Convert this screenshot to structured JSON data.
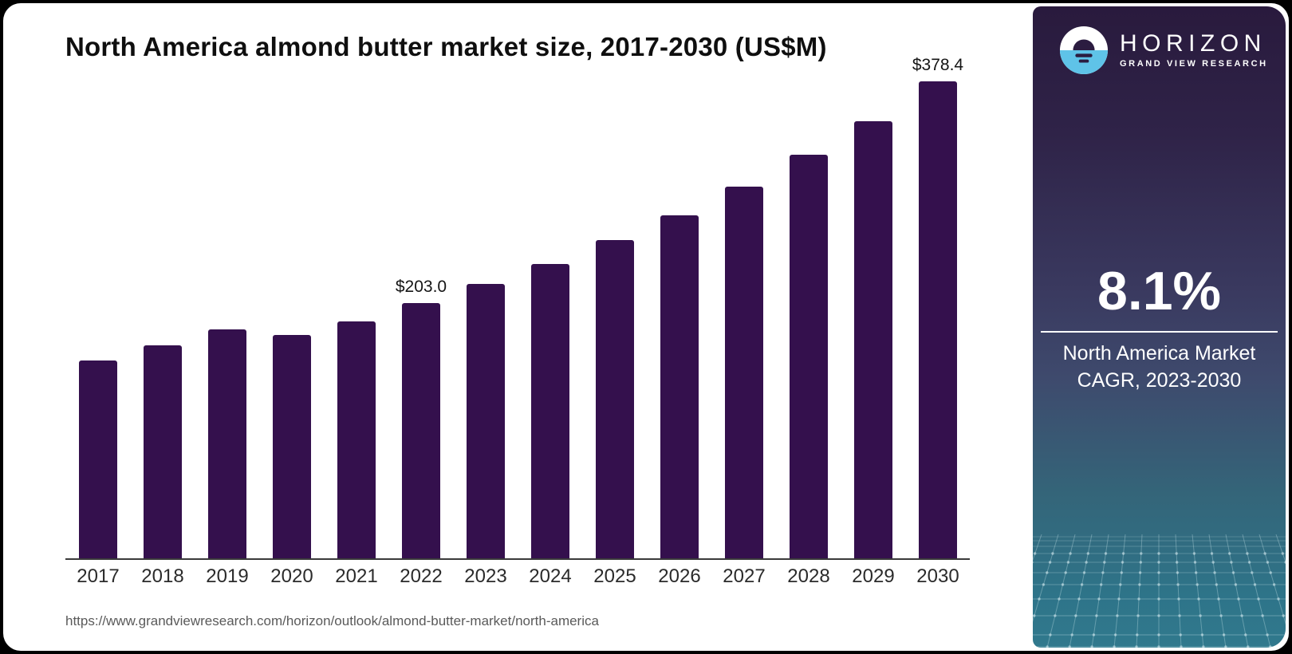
{
  "chart": {
    "title": "North America almond butter market size, 2017-2030 (US$M)",
    "source_url": "https://www.grandviewresearch.com/horizon/outlook/almond-butter-market/north-america"
  },
  "chart_data": {
    "type": "bar",
    "title": "North America almond butter market size, 2017-2030 (US$M)",
    "unit": "US$M",
    "categories": [
      "2017",
      "2018",
      "2019",
      "2020",
      "2021",
      "2022",
      "2023",
      "2024",
      "2025",
      "2026",
      "2027",
      "2028",
      "2029",
      "2030"
    ],
    "values": [
      157.0,
      169.0,
      182.1,
      177.2,
      188.5,
      203.0,
      218.1,
      233.9,
      252.8,
      272.3,
      295.0,
      320.2,
      346.7,
      378.4
    ],
    "value_labels": [
      "",
      "",
      "",
      "",
      "",
      "$203.0",
      "",
      "",
      "",
      "",
      "",
      "",
      "",
      "$378.4"
    ],
    "ylim": [
      0,
      400
    ],
    "grid": "off",
    "legend": "none",
    "bar_color": "#34104d",
    "axis_color": "#3b3b3b"
  },
  "sidebar": {
    "brand": "HORIZON",
    "brand_sub": "GRAND VIEW RESEARCH",
    "stat_value": "8.1%",
    "stat_caption_line1": "North America Market",
    "stat_caption_line2": "CAGR, 2023-2030",
    "accent_blue": "#5fc3e8",
    "panel_top_color": "#291a3d",
    "panel_bottom_color": "#31798d"
  }
}
